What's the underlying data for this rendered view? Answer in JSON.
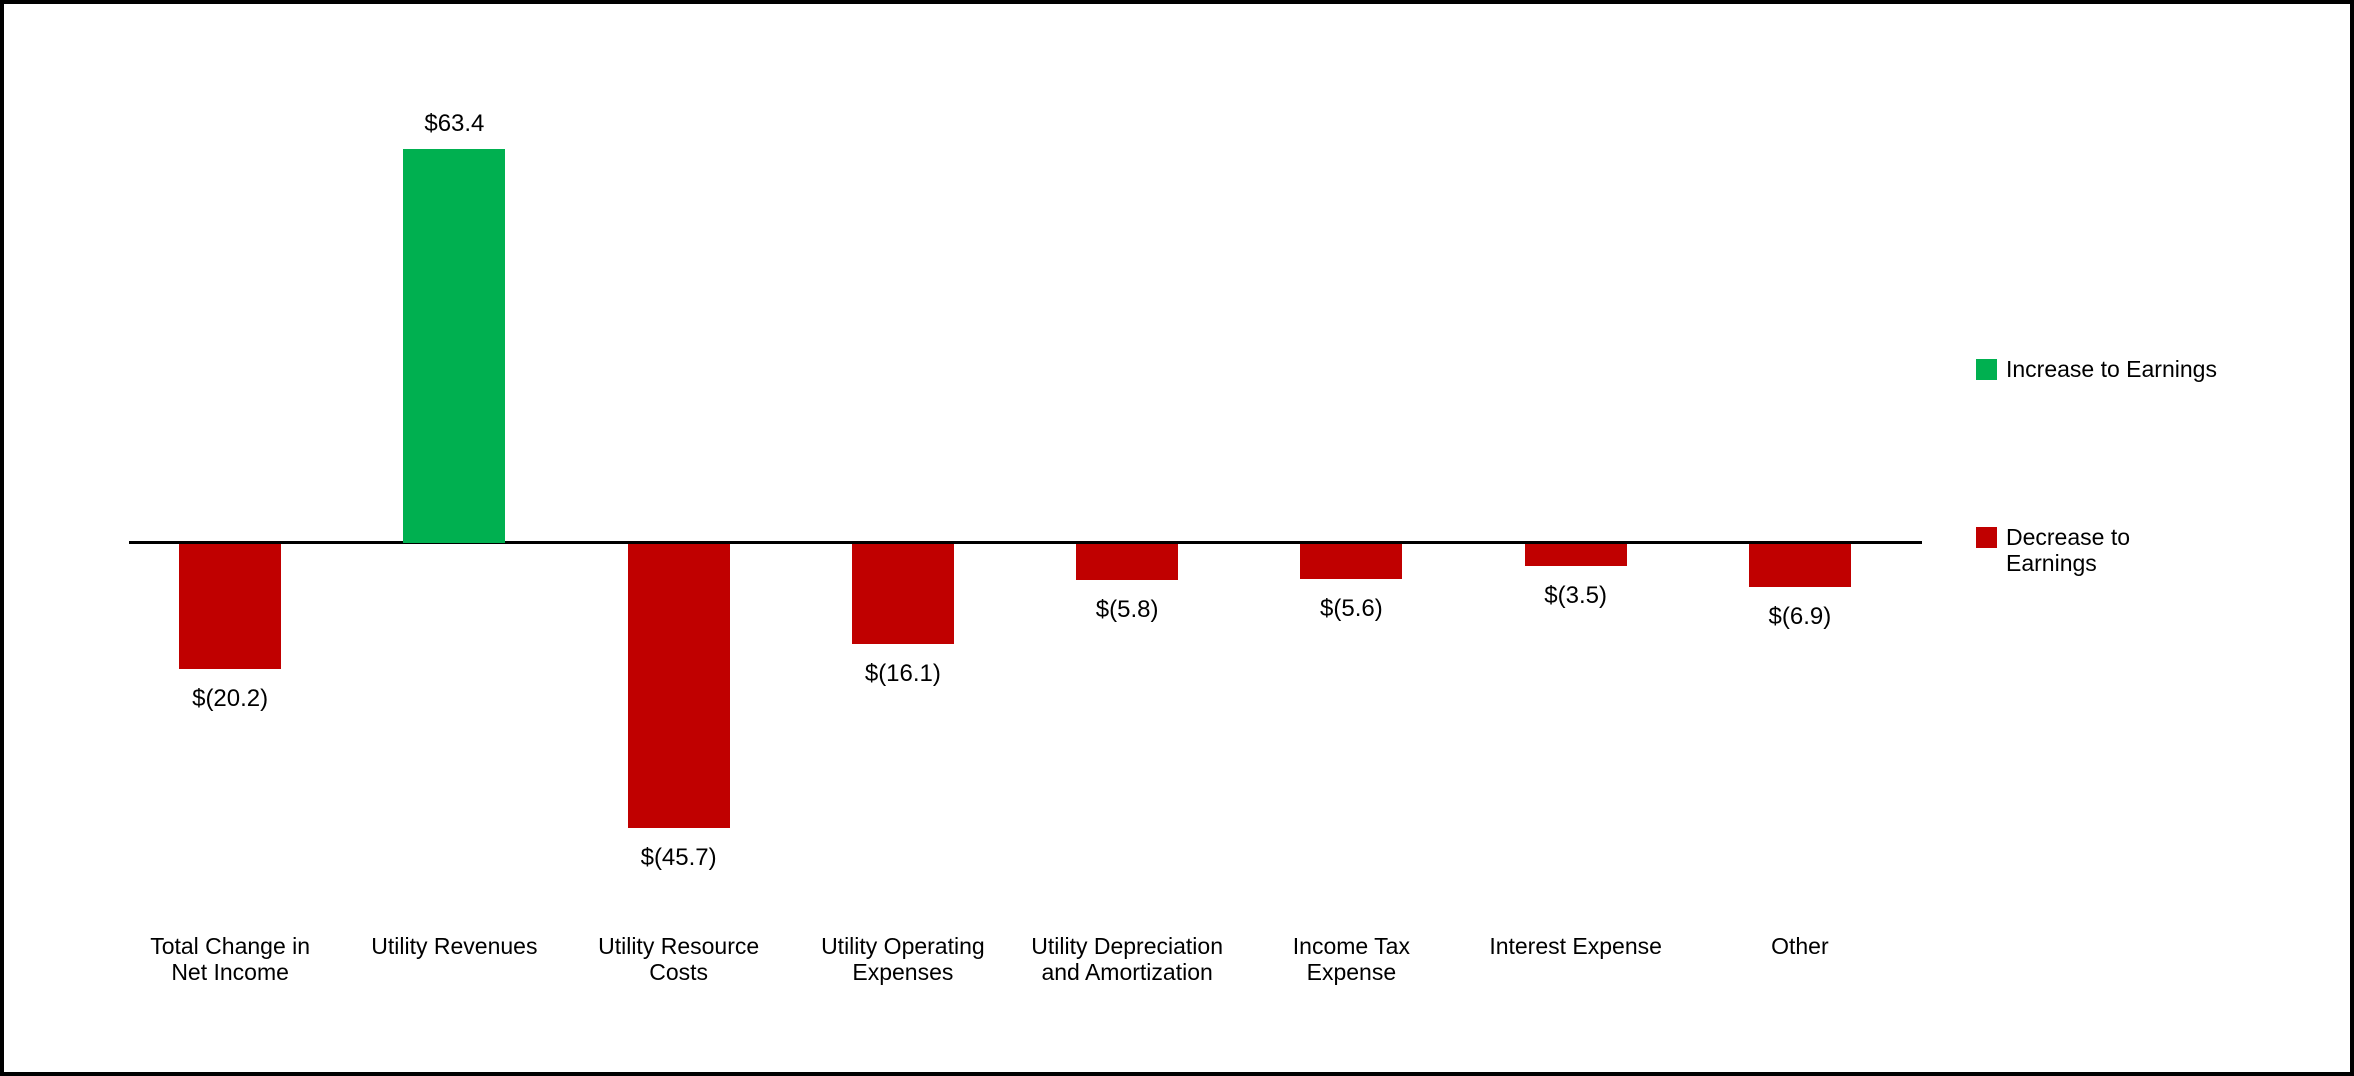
{
  "chart_data": {
    "type": "bar",
    "categories": [
      "Total Change in Net Income",
      "Utility Revenues",
      "Utility Resource Costs",
      "Utility Operating Expenses",
      "Utility Depreciation and Amortization",
      "Income Tax Expense",
      "Interest Expense",
      "Other"
    ],
    "values": [
      -20.2,
      63.4,
      -45.7,
      -16.1,
      -5.8,
      -5.6,
      -3.5,
      -6.9
    ],
    "value_labels": [
      "$(20.2)",
      "$63.4",
      "$(45.7)",
      "$(16.1)",
      "$(5.8)",
      "$(5.6)",
      "$(3.5)",
      "$(6.9)"
    ],
    "colors": {
      "increase": "#00B050",
      "decrease": "#C00000",
      "axis": "#000000",
      "text": "#000000",
      "background": "#FFFFFF"
    },
    "legend": [
      {
        "label": "Increase to Earnings",
        "color": "#00B050"
      },
      {
        "label": "Decrease to Earnings",
        "color": "#C00000"
      }
    ],
    "layout_hints": {
      "legend_position": "right",
      "gridlines": false,
      "y_axis_labels_visible": false,
      "ylim": [
        -50,
        66
      ],
      "baseline_value": 0
    }
  }
}
